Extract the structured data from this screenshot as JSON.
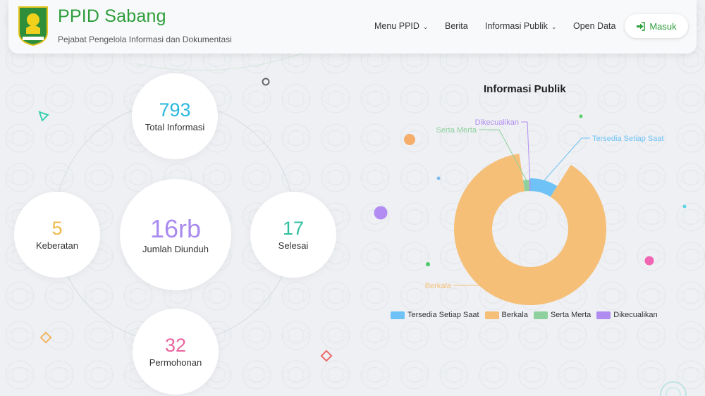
{
  "header": {
    "title": "PPID Sabang",
    "subtitle": "Pejabat Pengelola Informasi dan Dokumentasi",
    "logo_text": "KOTA SABANG",
    "nav": [
      {
        "label": "Menu PPID",
        "dropdown": true
      },
      {
        "label": "Berita",
        "dropdown": false
      },
      {
        "label": "Informasi Publik",
        "dropdown": true
      },
      {
        "label": "Open Data",
        "dropdown": false
      }
    ],
    "login_label": "Masuk",
    "login_icon": "sign-in-icon"
  },
  "stats": {
    "total": {
      "value": "793",
      "label": "Total Informasi",
      "color": "#2ab7e0"
    },
    "downloads": {
      "value": "16rb",
      "label": "Jumlah Diunduh",
      "color": "#a98bf0"
    },
    "objections": {
      "value": "5",
      "label": "Keberatan",
      "color": "#f0b84a"
    },
    "completed": {
      "value": "17",
      "label": "Selesai",
      "color": "#2fbf9f"
    },
    "requests": {
      "value": "32",
      "label": "Permohonan",
      "color": "#e8659e"
    }
  },
  "chart_data": {
    "type": "pie",
    "title": "Informasi Publik",
    "categories": [
      "Tersedia Setiap Saat",
      "Berkala",
      "Serta Merta",
      "Dikecualikan"
    ],
    "values": [
      9,
      89,
      2,
      0.3
    ],
    "colors": [
      "#6ec2f5",
      "#f5bf78",
      "#8fd19e",
      "#b18cf0"
    ],
    "legend_position": "bottom"
  }
}
